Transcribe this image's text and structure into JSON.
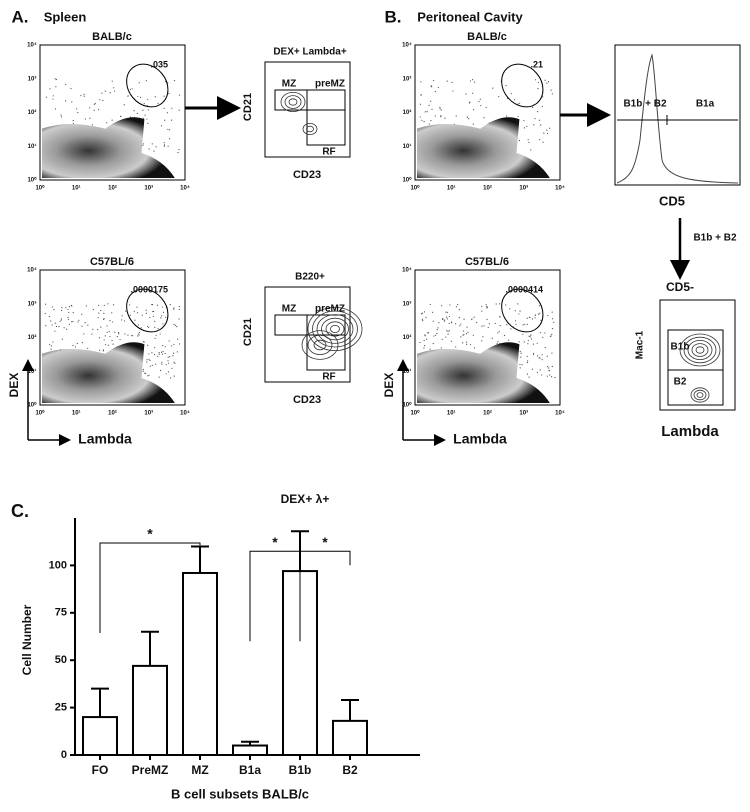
{
  "panel_a": {
    "label": "A.",
    "title": "Spleen",
    "strains": [
      "BALB/c",
      "C57BL/6"
    ],
    "frequencies": [
      ".035",
      ".0000175"
    ],
    "y_axis": "DEX",
    "x_axis": "Lambda",
    "gated": [
      {
        "title": "DEX+ Lambda+",
        "y_axis": "CD21",
        "x_axis": "CD23",
        "gates": [
          "MZ",
          "preMZ",
          "RF"
        ]
      },
      {
        "title": "B220+",
        "y_axis": "CD21",
        "x_axis": "CD23",
        "gates": [
          "MZ",
          "preMZ",
          "RF"
        ]
      }
    ]
  },
  "panel_b": {
    "label": "B.",
    "title": "Peritoneal Cavity",
    "strains": [
      "BALB/c",
      "C57BL/6"
    ],
    "frequencies": [
      ".21",
      ".0000414"
    ],
    "y_axis": "DEX",
    "x_axis": "Lambda",
    "histogram": {
      "x_axis": "CD5",
      "gates": [
        "B1b + B2",
        "B1a"
      ]
    },
    "arrow_label": "B1b + B2",
    "cd5_neg": {
      "title": "CD5-",
      "y_axis": "Mac-1",
      "x_axis": "Lambda",
      "gates": [
        "B1b",
        "B2"
      ]
    }
  },
  "log_ticks": [
    "10⁰",
    "10¹",
    "10²",
    "10³",
    "10⁴"
  ],
  "chart_data": {
    "type": "bar",
    "label": "C.",
    "title": "DEX+ λ+",
    "x_label": "B cell subsets BALB/c",
    "y_label": "Cell Number",
    "categories": [
      "FO",
      "PreMZ",
      "MZ",
      "B1a",
      "B1b",
      "B2"
    ],
    "values": [
      20,
      47,
      96,
      5,
      97,
      18
    ],
    "errors": [
      15,
      18,
      14,
      2,
      21,
      11
    ],
    "color": "#ffffff",
    "ylim": [
      0,
      125
    ],
    "yticks": [
      0,
      25,
      50,
      75,
      100
    ],
    "annotations": [
      {
        "text": "*",
        "between": [
          "FO",
          "MZ"
        ]
      },
      {
        "text": "*",
        "between": [
          "B1a",
          "B1b"
        ]
      },
      {
        "text": "*",
        "between": [
          "B1b",
          "B2"
        ]
      }
    ]
  }
}
